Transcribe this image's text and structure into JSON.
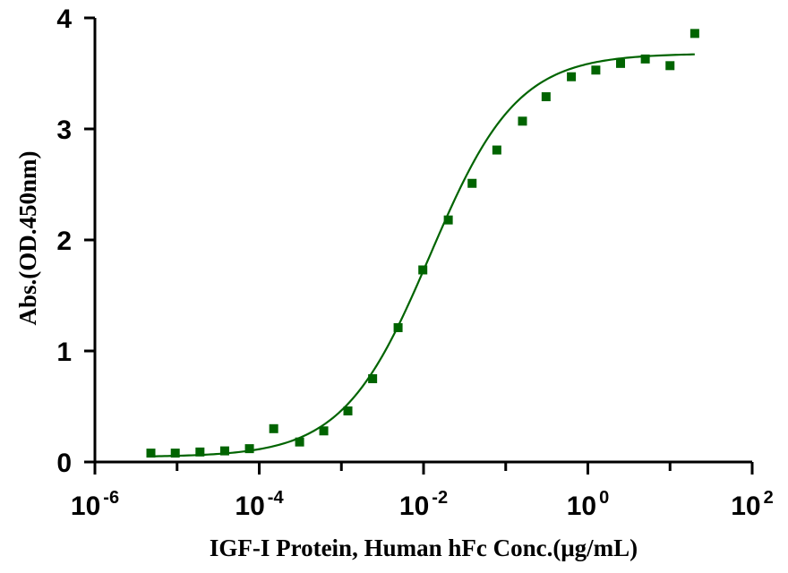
{
  "chart_data": {
    "type": "scatter",
    "title": "",
    "xlabel": "IGF-I Protein, Human hFc Conc.(μg/mL)",
    "ylabel": "Abs.(OD.450nm)",
    "x_scale": "log10",
    "xlim": [
      1e-06,
      100
    ],
    "ylim": [
      0,
      4
    ],
    "x_ticks": [
      {
        "value": 1e-06,
        "base": "10",
        "exp": "-6"
      },
      {
        "value": 0.0001,
        "base": "10",
        "exp": "-4"
      },
      {
        "value": 0.01,
        "base": "10",
        "exp": "-2"
      },
      {
        "value": 1,
        "base": "10",
        "exp": "0"
      },
      {
        "value": 100,
        "base": "10",
        "exp": "2"
      }
    ],
    "y_ticks": [
      {
        "value": 0,
        "label": "0"
      },
      {
        "value": 1,
        "label": "1"
      },
      {
        "value": 2,
        "label": "2"
      },
      {
        "value": 3,
        "label": "3"
      },
      {
        "value": 4,
        "label": "4"
      }
    ],
    "grid": false,
    "legend": "none",
    "series": [
      {
        "marker": "square",
        "color": "#006400",
        "x": [
          4.8e-06,
          9.5e-06,
          1.9e-05,
          3.8e-05,
          7.6e-05,
          0.00015,
          0.00031,
          0.00061,
          0.0012,
          0.0024,
          0.0049,
          0.0098,
          0.02,
          0.039,
          0.078,
          0.16,
          0.31,
          0.63,
          1.25,
          2.5,
          5,
          10,
          20
        ],
        "y": [
          0.08,
          0.08,
          0.09,
          0.1,
          0.12,
          0.3,
          0.18,
          0.28,
          0.46,
          0.75,
          1.21,
          1.73,
          2.18,
          2.51,
          2.81,
          3.07,
          3.29,
          3.47,
          3.53,
          3.59,
          3.63,
          3.57,
          3.86
        ]
      }
    ],
    "fit_curve": {
      "model": "4PL",
      "color": "#006400",
      "bottom": 0.045,
      "top": 3.68,
      "ec50": 0.012,
      "hill": 0.82,
      "x_range": [
        4.8e-06,
        20
      ]
    }
  }
}
